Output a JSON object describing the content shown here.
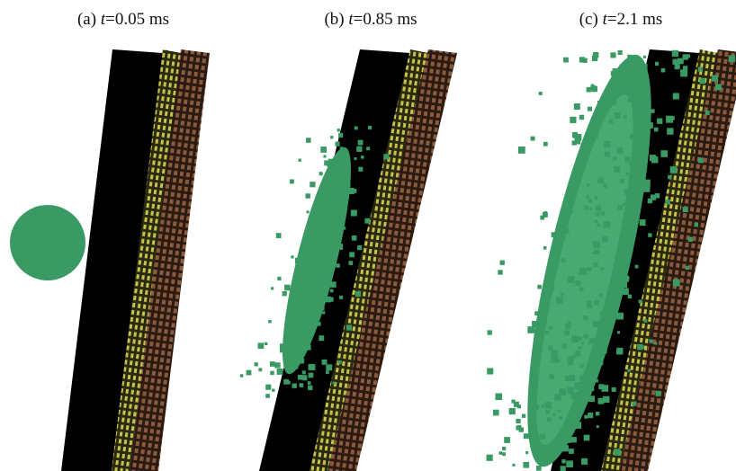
{
  "panels": [
    {
      "label": "(a)",
      "variable": "t",
      "time": "=0.05 ms"
    },
    {
      "label": "(b)",
      "variable": "t",
      "time": "=0.85 ms"
    },
    {
      "label": "(c)",
      "variable": "t",
      "time": "=2.1 ms"
    }
  ]
}
